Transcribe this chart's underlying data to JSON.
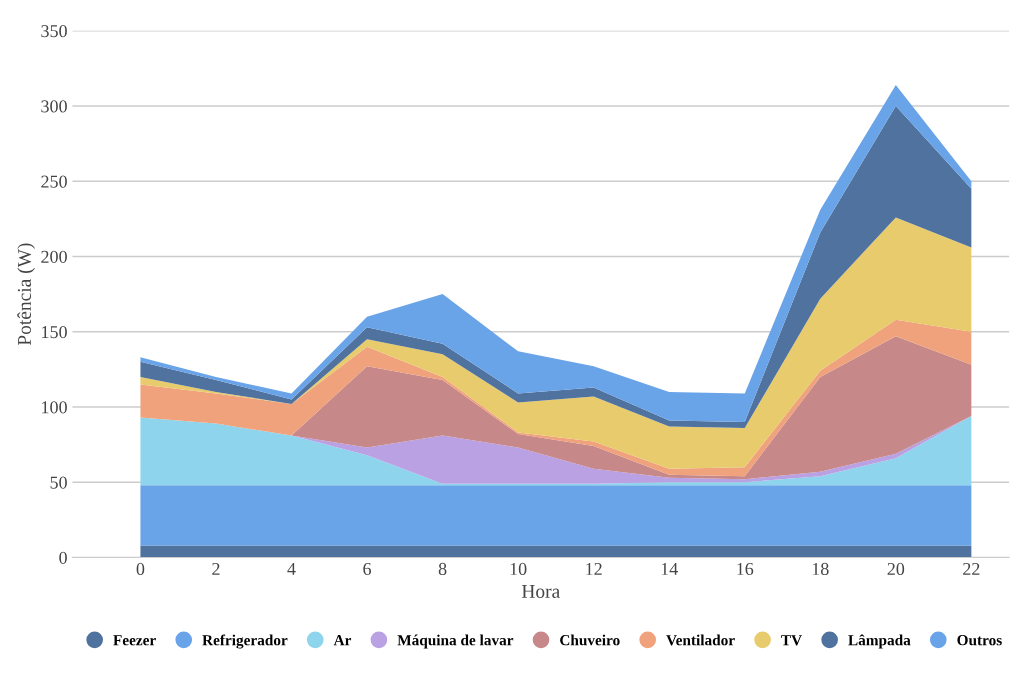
{
  "chart_data": {
    "type": "area",
    "stacked": true,
    "xlabel": "Hora",
    "ylabel": "Potência (W)",
    "x": [
      0,
      2,
      4,
      6,
      8,
      10,
      12,
      14,
      16,
      18,
      20,
      22
    ],
    "xlim": [
      -1.8,
      23
    ],
    "xticks": [
      0,
      2,
      4,
      6,
      8,
      10,
      12,
      14,
      16,
      18,
      20,
      22
    ],
    "ylim": [
      0,
      350
    ],
    "yticks": [
      0,
      50,
      100,
      150,
      200,
      250,
      300,
      350
    ],
    "grid": "y",
    "legend": "bottom",
    "series": [
      {
        "name": "Feezer",
        "color": "#50729f",
        "values": [
          8,
          8,
          8,
          8,
          8,
          8,
          8,
          8,
          8,
          8,
          8,
          8
        ]
      },
      {
        "name": "Refrigerador",
        "color": "#6aa4e8",
        "values": [
          40,
          40,
          40,
          40,
          40,
          40,
          40,
          40,
          40,
          40,
          40,
          40
        ]
      },
      {
        "name": "Ar",
        "color": "#8dd4ec",
        "values": [
          45,
          41,
          33,
          20,
          1,
          1,
          1,
          2,
          2,
          6,
          18,
          46
        ]
      },
      {
        "name": "Máquina de lavar",
        "color": "#baa1e4",
        "values": [
          0,
          0,
          0,
          5,
          32,
          24,
          10,
          3,
          2,
          3,
          3,
          0
        ]
      },
      {
        "name": "Chuveiro",
        "color": "#c7888a",
        "values": [
          0,
          0,
          0,
          54,
          37,
          9,
          15,
          2,
          2,
          63,
          78,
          34
        ]
      },
      {
        "name": "Ventilador",
        "color": "#f0a27c",
        "values": [
          22,
          20,
          21,
          13,
          2,
          1,
          3,
          4,
          6,
          4,
          11,
          22
        ]
      },
      {
        "name": "TV",
        "color": "#e8cb6c",
        "values": [
          5,
          1,
          0,
          5,
          15,
          20,
          30,
          28,
          26,
          48,
          68,
          56
        ]
      },
      {
        "name": "Lâmpada",
        "color": "#50729f",
        "values": [
          10,
          8,
          3,
          8,
          7,
          6,
          6,
          4,
          4,
          44,
          74,
          39
        ]
      },
      {
        "name": "Outros",
        "color": "#6aa4e8",
        "values": [
          3,
          2,
          4,
          7,
          33,
          28,
          14,
          19,
          19,
          15,
          14,
          5
        ]
      }
    ]
  }
}
